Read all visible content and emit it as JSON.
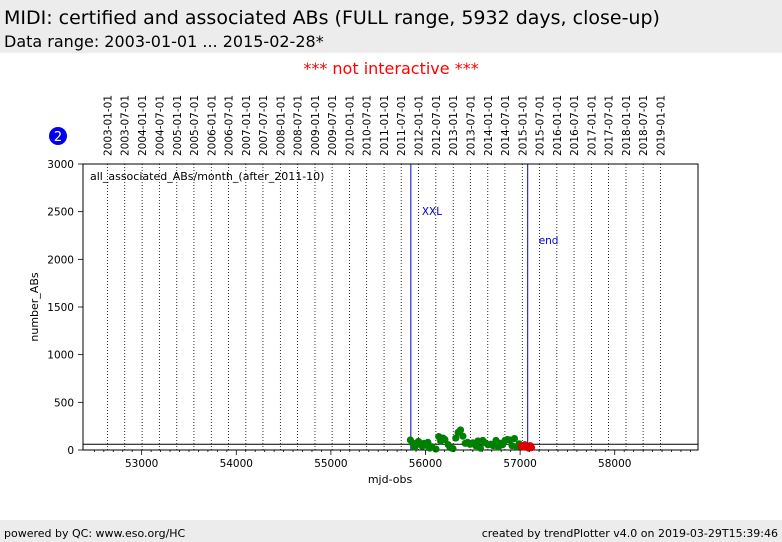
{
  "header": {
    "title": "MIDI: certified and associated ABs (FULL range, 5932 days, close-up)",
    "subtitle": "Data range: 2003-01-01 ... 2015-02-28*"
  },
  "notice": "*** not interactive ***",
  "badge": "2",
  "footer": {
    "left": "powered by QC: www.eso.org/HC",
    "right": "created by trendPlotter v4.0 on 2019-03-29T15:39:46"
  },
  "chart_data": {
    "type": "scatter",
    "xlabel": "mjd-obs",
    "ylabel": "number_ABs",
    "xlim": [
      52380,
      58880
    ],
    "ylim": [
      0,
      3000
    ],
    "x_ticks": [
      53000,
      54000,
      55000,
      56000,
      57000,
      58000
    ],
    "y_ticks": [
      0,
      500,
      1000,
      1500,
      2000,
      2500,
      3000
    ],
    "grid": "vertical dotted lines at dates",
    "legend_label": "all_associated_ABs/month_(after_2011-10)",
    "date_ticks": [
      "2003-01-01",
      "2003-07-01",
      "2004-01-01",
      "2004-07-01",
      "2005-01-01",
      "2005-07-01",
      "2006-01-01",
      "2006-07-01",
      "2007-01-01",
      "2007-07-01",
      "2008-01-01",
      "2008-07-01",
      "2009-01-01",
      "2009-07-01",
      "2010-01-01",
      "2010-07-01",
      "2011-01-01",
      "2011-07-01",
      "2012-01-01",
      "2012-07-01",
      "2013-01-01",
      "2013-07-01",
      "2014-01-01",
      "2014-07-01",
      "2015-01-01",
      "2015-07-01",
      "2016-01-01",
      "2016-07-01",
      "2017-01-01",
      "2017-07-01",
      "2018-01-01",
      "2018-07-01",
      "2019-01-01"
    ],
    "date_ticks_mjd": [
      52640,
      52821,
      53005,
      53187,
      53371,
      53552,
      53736,
      53917,
      54101,
      54282,
      54466,
      54648,
      54832,
      55013,
      55197,
      55378,
      55562,
      55743,
      55927,
      56109,
      56293,
      56474,
      56658,
      56839,
      57023,
      57204,
      57388,
      57570,
      57754,
      57935,
      58119,
      58300,
      58484
    ],
    "reference_line": 60,
    "markers": [
      {
        "label": "XXL",
        "x": 55845,
        "color": "#0000cc"
      },
      {
        "label": "end",
        "x": 57080,
        "color": "#0000cc"
      }
    ],
    "series": [
      {
        "color": "#008000",
        "points": [
          [
            55840,
            105
          ],
          [
            55860,
            75
          ],
          [
            55885,
            30
          ],
          [
            55905,
            55
          ],
          [
            55925,
            90
          ],
          [
            55945,
            60
          ],
          [
            55965,
            40
          ],
          [
            55985,
            70
          ],
          [
            56005,
            50
          ],
          [
            56025,
            80
          ],
          [
            56045,
            20
          ],
          [
            56065,
            35
          ],
          [
            56110,
            10
          ],
          [
            56140,
            140
          ],
          [
            56160,
            95
          ],
          [
            56185,
            125
          ],
          [
            56205,
            110
          ],
          [
            56240,
            55
          ],
          [
            56260,
            25
          ],
          [
            56290,
            15
          ],
          [
            56320,
            125
          ],
          [
            56345,
            185
          ],
          [
            56370,
            210
          ],
          [
            56395,
            145
          ],
          [
            56420,
            70
          ],
          [
            56445,
            80
          ],
          [
            56470,
            60
          ],
          [
            56500,
            75
          ],
          [
            56530,
            45
          ],
          [
            56555,
            95
          ],
          [
            56580,
            20
          ],
          [
            56605,
            100
          ],
          [
            56630,
            75
          ],
          [
            56660,
            55
          ],
          [
            56690,
            60
          ],
          [
            56715,
            45
          ],
          [
            56745,
            100
          ],
          [
            56770,
            30
          ],
          [
            56790,
            70
          ],
          [
            56815,
            55
          ],
          [
            56840,
            100
          ],
          [
            56865,
            110
          ],
          [
            56890,
            105
          ],
          [
            56915,
            45
          ],
          [
            56940,
            120
          ],
          [
            56965,
            35
          ],
          [
            56990,
            65
          ]
        ]
      },
      {
        "color": "#dd0000",
        "points": [
          [
            57010,
            40
          ],
          [
            57030,
            30
          ],
          [
            57050,
            55
          ],
          [
            57065,
            35
          ],
          [
            57090,
            20
          ],
          [
            57105,
            45
          ],
          [
            57120,
            25
          ]
        ]
      }
    ]
  }
}
